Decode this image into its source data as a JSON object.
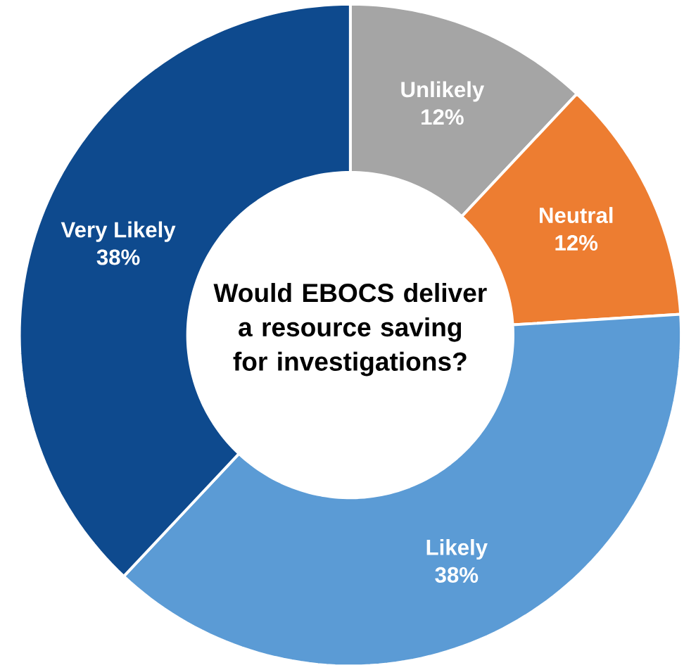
{
  "chart_data": {
    "type": "donut",
    "title": "Would EBOCS deliver a resource saving for investigations?",
    "categories": [
      "Unlikely",
      "Neutral",
      "Likely",
      "Very Likely"
    ],
    "values": [
      12,
      12,
      38,
      38
    ],
    "value_labels": [
      "12%",
      "12%",
      "38%",
      "38%"
    ],
    "colors": [
      "#a5a5a5",
      "#ed7d31",
      "#5b9bd5",
      "#0e4a8e"
    ]
  }
}
